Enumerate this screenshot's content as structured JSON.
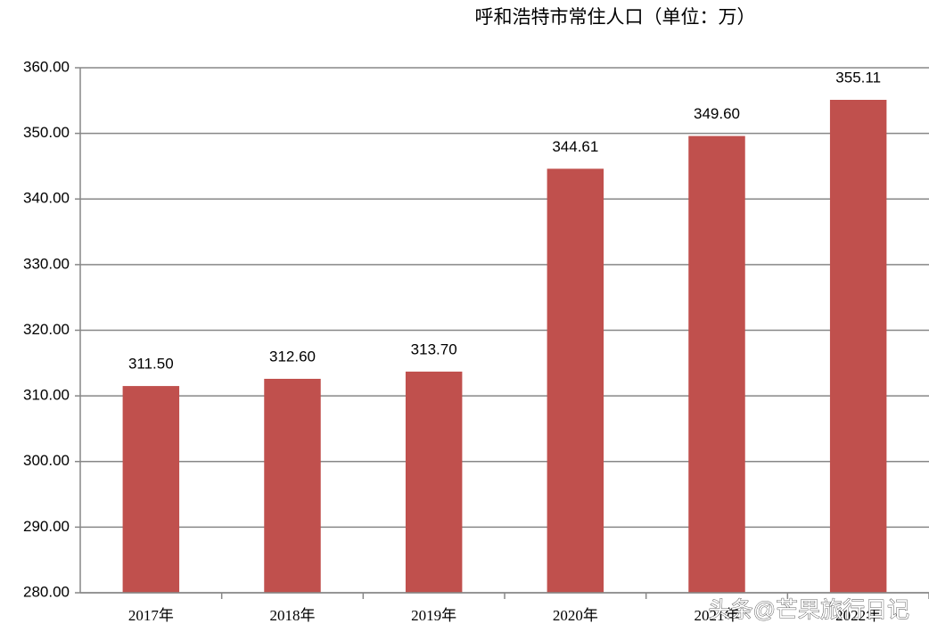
{
  "chart_data": {
    "type": "bar",
    "title": "呼和浩特市常住人口（单位：万）",
    "categories": [
      "2017年",
      "2018年",
      "2019年",
      "2020年",
      "2021年",
      "2022年"
    ],
    "values": [
      311.5,
      312.6,
      313.7,
      344.61,
      349.6,
      355.11
    ],
    "value_labels": [
      "311.50",
      "312.60",
      "313.70",
      "344.61",
      "349.60",
      "355.11"
    ],
    "color": "#c0504d",
    "ylim": [
      280,
      360
    ],
    "yticks": [
      {
        "value": 280,
        "label": "280.00"
      },
      {
        "value": 290,
        "label": "290.00"
      },
      {
        "value": 300,
        "label": "300.00"
      },
      {
        "value": 310,
        "label": "310.00"
      },
      {
        "value": 320,
        "label": "320.00"
      },
      {
        "value": 330,
        "label": "330.00"
      },
      {
        "value": 340,
        "label": "340.00"
      },
      {
        "value": 350,
        "label": "350.00"
      },
      {
        "value": 360,
        "label": "360.00"
      }
    ],
    "grid": true,
    "watermark": "头条@芒果旅行日记"
  }
}
